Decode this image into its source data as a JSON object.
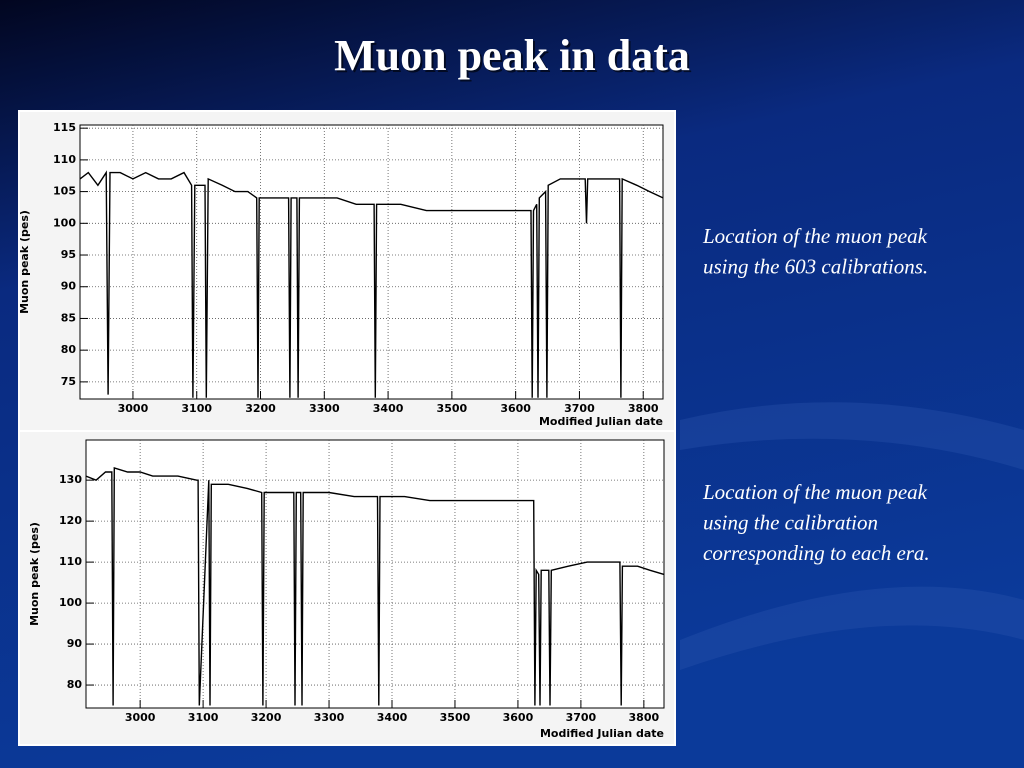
{
  "title": "Muon peak in data",
  "notes": [
    [
      "Location of the muon peak",
      "using the 603 calibrations."
    ],
    [
      "Location of the muon peak",
      "using the calibration",
      "corresponding to each era."
    ]
  ],
  "chart_data": [
    {
      "type": "line",
      "y_label": "Muon peak (pes)",
      "x_label": "Modified Julian date",
      "color": "#000000",
      "grid": true,
      "xlim": [
        2917,
        3831
      ],
      "xticks": [
        3000,
        3100,
        3200,
        3300,
        3400,
        3500,
        3600,
        3700,
        3800
      ],
      "ylim": [
        72.3,
        115.5
      ],
      "yticks": [
        75,
        80,
        85,
        90,
        95,
        100,
        105,
        110,
        115
      ],
      "x": [
        2917,
        2930,
        2945,
        2958,
        2961,
        2964,
        2980,
        3000,
        3020,
        3040,
        3060,
        3080,
        3092,
        3094,
        3097,
        3113,
        3115,
        3118,
        3140,
        3160,
        3180,
        3194,
        3196,
        3198,
        3220,
        3244,
        3246,
        3248,
        3257,
        3259,
        3261,
        3290,
        3320,
        3350,
        3378,
        3380,
        3382,
        3420,
        3460,
        3500,
        3540,
        3580,
        3610,
        3624,
        3626,
        3628,
        3633,
        3635,
        3637,
        3647,
        3649,
        3651,
        3670,
        3690,
        3709,
        3711,
        3713,
        3740,
        3763,
        3765,
        3767,
        3790,
        3810,
        3831
      ],
      "values": [
        107,
        108,
        106,
        108,
        73,
        108,
        108,
        107,
        108,
        107,
        107,
        108,
        106,
        72.5,
        106,
        106,
        72.5,
        107,
        106,
        105,
        105,
        104,
        72.5,
        104,
        104,
        104,
        72.5,
        104,
        104,
        72.5,
        104,
        104,
        104,
        103,
        103,
        72.5,
        103,
        103,
        102,
        102,
        102,
        102,
        102,
        102,
        72.5,
        102,
        103,
        72.5,
        104,
        105,
        72.5,
        106,
        107,
        107,
        107,
        100,
        107,
        107,
        107,
        72.5,
        107,
        106,
        105,
        104
      ]
    },
    {
      "type": "line",
      "y_label": "Muon peak (pes)",
      "x_label": "Modified Julian date",
      "color": "#000000",
      "grid": true,
      "xlim": [
        2914,
        3832
      ],
      "xticks": [
        3000,
        3100,
        3200,
        3300,
        3400,
        3500,
        3600,
        3700,
        3800
      ],
      "ylim": [
        74.4,
        139.8
      ],
      "yticks": [
        80,
        90,
        100,
        110,
        120,
        130
      ],
      "x": [
        2914,
        2930,
        2945,
        2955,
        2957,
        2959,
        2980,
        3000,
        3020,
        3040,
        3060,
        3090,
        3092,
        3094,
        3109,
        3111,
        3113,
        3140,
        3170,
        3193,
        3195,
        3197,
        3220,
        3244,
        3246,
        3248,
        3255,
        3257,
        3259,
        3300,
        3340,
        3377,
        3379,
        3381,
        3420,
        3460,
        3500,
        3540,
        3580,
        3620,
        3625,
        3627,
        3629,
        3633,
        3635,
        3637,
        3649,
        3651,
        3653,
        3680,
        3710,
        3740,
        3762,
        3764,
        3766,
        3790,
        3810,
        3832
      ],
      "values": [
        131,
        130,
        132,
        132,
        75,
        133,
        132,
        132,
        131,
        131,
        131,
        130,
        130,
        75,
        130,
        75,
        129,
        129,
        128,
        127,
        75,
        127,
        127,
        127,
        75,
        127,
        127,
        75,
        127,
        127,
        126,
        126,
        75,
        126,
        126,
        125,
        125,
        125,
        125,
        125,
        125,
        75,
        108,
        107,
        75,
        108,
        108,
        75,
        108,
        109,
        110,
        110,
        110,
        75,
        109,
        109,
        108,
        107
      ]
    }
  ]
}
